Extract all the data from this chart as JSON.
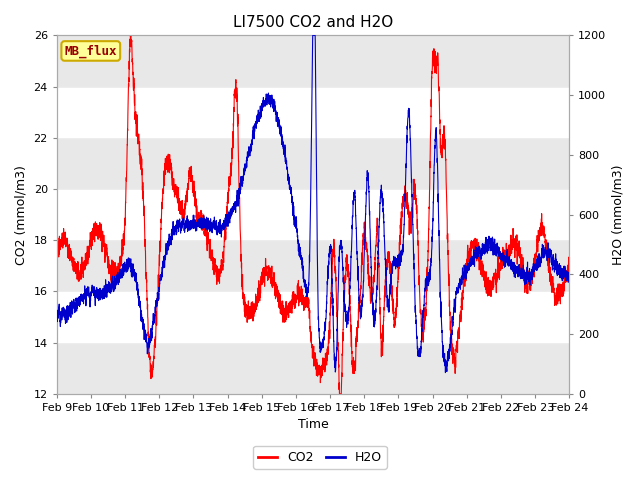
{
  "title": "LI7500 CO2 and H2O",
  "xlabel": "Time",
  "ylabel_left": "CO2 (mmol/m3)",
  "ylabel_right": "H2O (mmol/m3)",
  "ylim_left": [
    12,
    26
  ],
  "ylim_right": [
    0,
    1200
  ],
  "yticks_left": [
    12,
    14,
    16,
    18,
    20,
    22,
    24,
    26
  ],
  "yticks_right": [
    0,
    200,
    400,
    600,
    800,
    1000,
    1200
  ],
  "xticklabels": [
    "Feb 9",
    "Feb 10",
    "Feb 11",
    "Feb 12",
    "Feb 13",
    "Feb 14",
    "Feb 15",
    "Feb 16",
    "Feb 17",
    "Feb 18",
    "Feb 19",
    "Feb 20",
    "Feb 21",
    "Feb 22",
    "Feb 23",
    "Feb 24"
  ],
  "co2_color": "#FF0000",
  "h2o_color": "#0000CC",
  "legend_co2": "CO2",
  "legend_h2o": "H2O",
  "watermark_text": "MB_flux",
  "watermark_bg": "#FFFF99",
  "watermark_border": "#CCAA00",
  "watermark_text_color": "#990000",
  "fig_bg_color": "#FFFFFF",
  "plot_bg_light": "#FFFFFF",
  "plot_bg_dark": "#E8E8E8",
  "title_fontsize": 11,
  "axis_label_fontsize": 9,
  "tick_fontsize": 8,
  "legend_fontsize": 9,
  "linewidth": 0.8,
  "n_days": 15,
  "seed": 42
}
